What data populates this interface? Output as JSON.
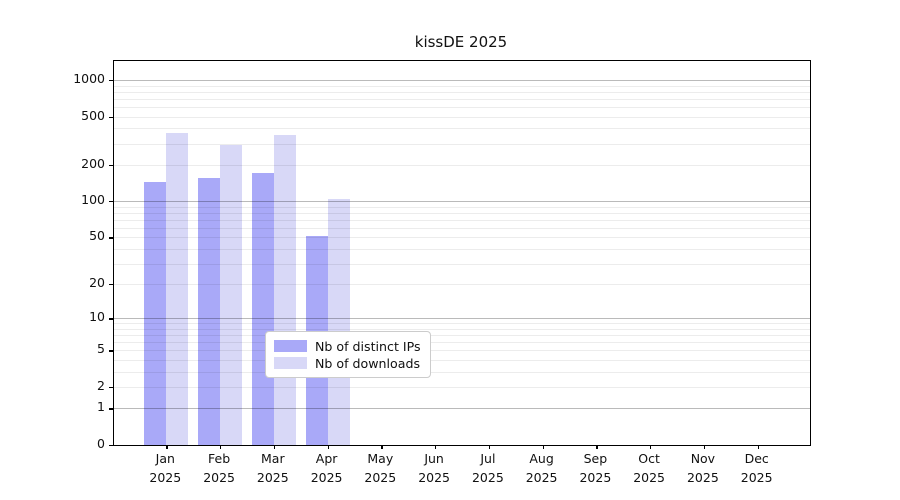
{
  "figure": {
    "title": "kissDE 2025"
  },
  "chart_data": {
    "type": "bar",
    "title": "kissDE 2025",
    "xlabel": "",
    "ylabel": "",
    "yscale": "log10(v+1)",
    "ylim": [
      0,
      1385
    ],
    "yticks": [
      0,
      1,
      2,
      5,
      10,
      20,
      50,
      100,
      200,
      500,
      1000
    ],
    "major_grid_values": [
      1,
      10,
      100,
      1000
    ],
    "minor_grid_decades": [
      1,
      10,
      100
    ],
    "grid": "both",
    "categories": [
      "Jan 2025",
      "Feb 2025",
      "Mar 2025",
      "Apr 2025",
      "May 2025",
      "Jun 2025",
      "Jul 2025",
      "Aug 2025",
      "Sep 2025",
      "Oct 2025",
      "Nov 2025",
      "Dec 2025"
    ],
    "months": [
      "Jan",
      "Feb",
      "Mar",
      "Apr",
      "May",
      "Jun",
      "Jul",
      "Aug",
      "Sep",
      "Oct",
      "Nov",
      "Dec"
    ],
    "year_label": "2025",
    "series": [
      {
        "name": "Nb of distinct IPs",
        "color": "#a9a9f8",
        "values": [
          145,
          155,
          170,
          51,
          0,
          0,
          0,
          0,
          0,
          0,
          0,
          0
        ]
      },
      {
        "name": "Nb of downloads",
        "color": "#d8d8f7",
        "values": [
          365,
          290,
          355,
          105,
          0,
          0,
          0,
          0,
          0,
          0,
          0,
          0
        ]
      }
    ],
    "legend_position": "inside-bottom-center"
  }
}
